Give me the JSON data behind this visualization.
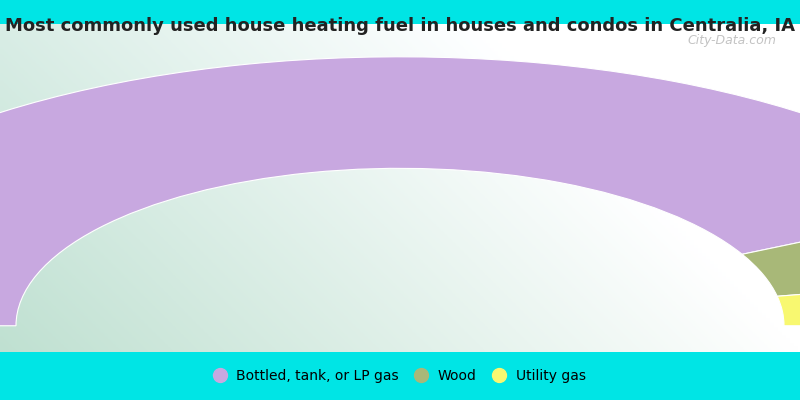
{
  "title": "Most commonly used house heating fuel in houses and condos in Centralia, IA",
  "title_fontsize": 13,
  "background_top": "#00e5e5",
  "slices": [
    {
      "label": "Bottled, tank, or LP gas",
      "value": 85,
      "color": "#c8a8e0"
    },
    {
      "label": "Wood",
      "value": 9,
      "color": "#a8b878"
    },
    {
      "label": "Utility gas",
      "value": 6,
      "color": "#f8f870"
    }
  ],
  "legend_fontsize": 10,
  "watermark": "City-Data.com"
}
